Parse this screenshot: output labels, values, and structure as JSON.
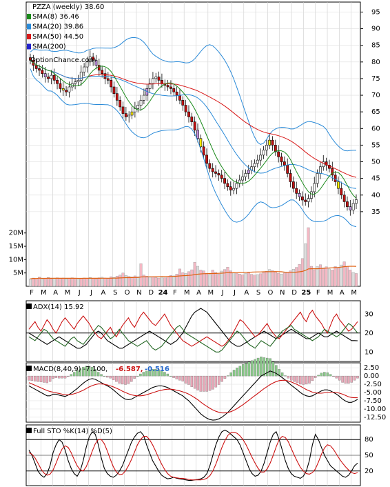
{
  "chart_data": [
    {
      "type": "candlestick",
      "panel": "price",
      "ticker_label": "PZZA (weekly) 38.60",
      "watermark": "OptionChance.com",
      "legend": [
        {
          "label": "SMA(8) 36.46",
          "color": "#1a8a1a"
        },
        {
          "label": "SMA(20) 39.86",
          "color": "#2a8ad8"
        },
        {
          "label": "SMA(50) 44.50",
          "color": "#d81818"
        },
        {
          "label": "SMA(200)",
          "color": "#2222cc"
        }
      ],
      "bollinger_color": "#ffee66",
      "x_labels": [
        "F",
        "M",
        "A",
        "M",
        "J",
        "J",
        "A",
        "S",
        "O",
        "N",
        "D",
        "24",
        "F",
        "M",
        "A",
        "M",
        "J",
        "J",
        "A",
        "S",
        "O",
        "N",
        "D",
        "25",
        "F",
        "M",
        "A",
        "M"
      ],
      "y_ticks": [
        95,
        90,
        85,
        80,
        75,
        70,
        65,
        60,
        55,
        50,
        45,
        40,
        35
      ],
      "ylim": [
        28,
        98
      ],
      "closes": [
        80.5,
        79.0,
        78.0,
        77.5,
        76.5,
        75.5,
        75.0,
        76.0,
        74.5,
        73.5,
        72.0,
        71.5,
        71.0,
        72.5,
        73.5,
        74.0,
        74.5,
        77.0,
        78.5,
        80.0,
        81.5,
        80.5,
        79.0,
        77.5,
        76.5,
        75.0,
        74.5,
        72.5,
        70.5,
        68.5,
        66.5,
        64.5,
        63.5,
        64.0,
        65.0,
        66.0,
        67.0,
        68.5,
        70.0,
        72.0,
        73.5,
        75.0,
        75.5,
        74.5,
        73.5,
        73.0,
        72.5,
        72.0,
        71.0,
        70.0,
        68.5,
        67.0,
        65.0,
        63.5,
        62.0,
        59.5,
        57.0,
        54.5,
        52.0,
        49.5,
        48.0,
        47.0,
        46.5,
        46.0,
        45.0,
        43.5,
        42.5,
        41.5,
        42.0,
        43.5,
        44.5,
        45.5,
        46.5,
        47.5,
        48.5,
        49.5,
        50.5,
        52.0,
        53.5,
        55.0,
        56.5,
        55.0,
        53.0,
        51.5,
        50.0,
        49.0,
        46.5,
        44.0,
        42.0,
        40.5,
        39.5,
        38.5,
        38.0,
        39.0,
        41.0,
        43.5,
        46.5,
        48.5,
        50.0,
        49.0,
        48.0,
        46.0,
        44.0,
        42.0,
        40.0,
        38.0,
        36.5,
        35.5,
        37.5,
        38.6
      ],
      "volume_ticks": [
        "20M",
        "15M",
        "10M",
        "5M"
      ],
      "volume_ylim": [
        0,
        22
      ],
      "volume_millions": [
        2.8,
        3.1,
        2.9,
        3.4,
        2.7,
        3.0,
        3.3,
        2.8,
        3.0,
        3.2,
        2.9,
        3.1,
        2.8,
        3.0,
        3.2,
        2.9,
        2.7,
        3.0,
        3.1,
        2.9,
        3.3,
        3.0,
        2.8,
        3.2,
        3.4,
        3.1,
        2.9,
        3.6,
        3.3,
        3.8,
        4.2,
        5.0,
        4.1,
        3.7,
        3.5,
        3.9,
        3.6,
        8.5,
        4.2,
        3.8,
        3.4,
        3.6,
        3.3,
        3.1,
        3.5,
        3.2,
        3.7,
        4.1,
        3.9,
        4.6,
        6.5,
        5.1,
        4.8,
        5.5,
        6.2,
        9.0,
        7.5,
        6.1,
        5.8,
        4.9,
        4.4,
        6.1,
        5.2,
        4.6,
        5.7,
        6.3,
        7.2,
        5.8,
        5.1,
        4.9,
        4.6,
        4.3,
        4.8,
        5.1,
        4.5,
        4.2,
        4.4,
        4.7,
        5.2,
        5.6,
        6.3,
        5.9,
        5.4,
        4.9,
        4.6,
        5.0,
        5.3,
        5.8,
        6.4,
        7.1,
        8.2,
        10.4,
        16.0,
        22.0,
        7.5,
        6.2,
        7.4,
        8.1,
        6.9,
        7.3,
        6.5,
        6.1,
        7.4,
        6.8,
        8.0,
        9.2,
        7.4,
        6.1,
        5.2,
        4.8
      ]
    },
    {
      "type": "line",
      "panel": "ADX",
      "label": "ADX(14) 15.92",
      "y_ticks": [
        30,
        20,
        10
      ],
      "ylim": [
        5,
        37
      ],
      "series": [
        {
          "name": "",
          "color": "#000000",
          "values": [
            20,
            19,
            18,
            17,
            16,
            15,
            14,
            15,
            16,
            17,
            18,
            17,
            16,
            15,
            14,
            13,
            12,
            12,
            13,
            14,
            16,
            18,
            20,
            21,
            20,
            18,
            16,
            15,
            14,
            13,
            12,
            12,
            13,
            14,
            15,
            16,
            17,
            18,
            19,
            20,
            21,
            20,
            19,
            18,
            17,
            16,
            15,
            14,
            15,
            16,
            18,
            20,
            23,
            26,
            29,
            31,
            32,
            33,
            32,
            31,
            29,
            27,
            25,
            23,
            21,
            19,
            17,
            15,
            14,
            13,
            13,
            14,
            15,
            16,
            17,
            18,
            19,
            20,
            21,
            20,
            19,
            18,
            17,
            18,
            19,
            20,
            21,
            22,
            21,
            20,
            19,
            18,
            17,
            17,
            18,
            19,
            20,
            19,
            18,
            18,
            19,
            20,
            21,
            20,
            19,
            18,
            17,
            16,
            16,
            15.9
          ]
        },
        {
          "name": "",
          "color": "#cc1111",
          "values": [
            22,
            24,
            26,
            23,
            21,
            24,
            27,
            25,
            22,
            20,
            23,
            26,
            28,
            26,
            24,
            22,
            25,
            27,
            29,
            27,
            25,
            22,
            20,
            18,
            17,
            19,
            21,
            23,
            20,
            18,
            21,
            24,
            26,
            28,
            25,
            23,
            26,
            29,
            31,
            29,
            27,
            25,
            24,
            26,
            28,
            30,
            27,
            24,
            22,
            20,
            18,
            16,
            15,
            14,
            13,
            14,
            15,
            16,
            17,
            18,
            17,
            16,
            15,
            14,
            13,
            14,
            16,
            18,
            21,
            24,
            27,
            26,
            24,
            22,
            20,
            18,
            19,
            21,
            23,
            25,
            22,
            20,
            18,
            17,
            19,
            21,
            23,
            25,
            27,
            29,
            31,
            28,
            26,
            30,
            32,
            29,
            27,
            25,
            22,
            20,
            24,
            28,
            30,
            27,
            25,
            23,
            21,
            22,
            24,
            26
          ]
        },
        {
          "name": "",
          "color": "#226622",
          "values": [
            18,
            17,
            16,
            18,
            20,
            22,
            21,
            19,
            17,
            16,
            15,
            14,
            13,
            15,
            17,
            18,
            16,
            15,
            14,
            16,
            18,
            20,
            22,
            24,
            23,
            21,
            19,
            17,
            18,
            20,
            22,
            20,
            18,
            16,
            15,
            14,
            13,
            14,
            15,
            16,
            14,
            12,
            11,
            12,
            13,
            15,
            17,
            19,
            21,
            23,
            24,
            22,
            20,
            19,
            18,
            17,
            16,
            15,
            14,
            13,
            12,
            11,
            10,
            10,
            11,
            13,
            15,
            17,
            19,
            21,
            20,
            18,
            16,
            14,
            13,
            12,
            14,
            16,
            15,
            14,
            13,
            15,
            17,
            19,
            21,
            22,
            23,
            24,
            22,
            21,
            20,
            19,
            18,
            17,
            16,
            17,
            18,
            20,
            22,
            21,
            20,
            19,
            18,
            19,
            21,
            23,
            25,
            24,
            22,
            20
          ]
        }
      ]
    },
    {
      "type": "line",
      "panel": "MACD",
      "label": "MACD(8,40,9) -7.100,",
      "signal_value": "-6.587,",
      "hist_value": "-0.516",
      "y_ticks": [
        "2.50",
        "0.00",
        "-2.50",
        "-5.00",
        "-7.50",
        "-10.00",
        "-12.50"
      ],
      "ylim": [
        -14,
        4
      ],
      "series": [
        {
          "name": "",
          "color": "#000000",
          "values": [
            -3,
            -3.5,
            -4,
            -4.5,
            -5,
            -5.5,
            -6,
            -6,
            -5.5,
            -5.5,
            -5.8,
            -6,
            -6.2,
            -5.8,
            -5.2,
            -4.5,
            -3.8,
            -3,
            -2.2,
            -1.5,
            -1,
            -0.8,
            -1,
            -1.5,
            -2,
            -2.5,
            -3,
            -3.5,
            -4.2,
            -5,
            -5.8,
            -6.5,
            -7,
            -7.2,
            -7,
            -6.5,
            -6,
            -5.5,
            -5,
            -4.5,
            -4,
            -3.5,
            -3.2,
            -3,
            -3,
            -3.2,
            -3.5,
            -4,
            -4.5,
            -5,
            -5.5,
            -6,
            -6.8,
            -7.5,
            -8.5,
            -9.5,
            -10.5,
            -11.5,
            -12.2,
            -12.8,
            -13.2,
            -13.4,
            -13.3,
            -13,
            -12.5,
            -11.8,
            -11,
            -10,
            -9,
            -8,
            -7,
            -6,
            -5,
            -4,
            -3,
            -2,
            -1,
            0,
            0.5,
            1,
            1.5,
            1.2,
            0.8,
            0.2,
            -0.5,
            -1.2,
            -2,
            -2.8,
            -3.5,
            -4.2,
            -5,
            -5.6,
            -6,
            -6.2,
            -6,
            -5.5,
            -5,
            -4.5,
            -4.2,
            -4.2,
            -4.5,
            -5,
            -5.5,
            -6.2,
            -7,
            -7.6,
            -8,
            -8,
            -7.6,
            -7.1
          ]
        },
        {
          "name": "",
          "color": "#cc1111",
          "values": [
            -2,
            -2.4,
            -2.8,
            -3.2,
            -3.6,
            -4,
            -4.4,
            -4.7,
            -4.9,
            -5.1,
            -5.3,
            -5.5,
            -5.7,
            -5.7,
            -5.6,
            -5.4,
            -5.1,
            -4.7,
            -4.3,
            -3.8,
            -3.3,
            -2.9,
            -2.6,
            -2.4,
            -2.4,
            -2.5,
            -2.7,
            -3,
            -3.3,
            -3.7,
            -4.1,
            -4.6,
            -5,
            -5.4,
            -5.7,
            -5.9,
            -6,
            -6,
            -5.9,
            -5.7,
            -5.4,
            -5.1,
            -4.8,
            -4.5,
            -4.3,
            -4.1,
            -4,
            -4,
            -4.1,
            -4.3,
            -4.5,
            -4.8,
            -5.1,
            -5.5,
            -6,
            -6.6,
            -7.2,
            -7.9,
            -8.6,
            -9.2,
            -9.8,
            -10.3,
            -10.7,
            -11,
            -11.2,
            -11.2,
            -11.1,
            -10.8,
            -10.4,
            -9.9,
            -9.3,
            -8.7,
            -8,
            -7.3,
            -6.6,
            -5.9,
            -5.2,
            -4.5,
            -3.8,
            -3.2,
            -2.6,
            -2.1,
            -1.7,
            -1.4,
            -1.3,
            -1.3,
            -1.5,
            -1.8,
            -2.2,
            -2.6,
            -3.1,
            -3.6,
            -4.1,
            -4.5,
            -4.9,
            -5.1,
            -5.2,
            -5.2,
            -5.1,
            -5,
            -4.9,
            -4.9,
            -5,
            -5.2,
            -5.5,
            -5.9,
            -6.3,
            -6.5,
            -6.6,
            -6.59
          ]
        }
      ]
    },
    {
      "type": "line",
      "panel": "Stochastic",
      "label": "Full STO %K(14) %D(5)",
      "y_ticks": [
        80,
        50,
        20
      ],
      "ylim": [
        0,
        100
      ],
      "series": [
        {
          "name": "",
          "color": "#000000",
          "values": [
            60,
            50,
            35,
            20,
            12,
            8,
            15,
            30,
            55,
            70,
            80,
            75,
            60,
            40,
            25,
            15,
            10,
            20,
            40,
            65,
            85,
            95,
            90,
            70,
            45,
            25,
            15,
            10,
            8,
            12,
            20,
            30,
            45,
            60,
            75,
            85,
            92,
            95,
            88,
            70,
            55,
            40,
            30,
            20,
            12,
            8,
            5,
            6,
            8,
            6,
            5,
            4,
            3,
            2,
            2,
            3,
            4,
            5,
            8,
            15,
            30,
            50,
            70,
            85,
            95,
            98,
            95,
            90,
            85,
            80,
            70,
            55,
            40,
            25,
            15,
            10,
            12,
            20,
            35,
            55,
            75,
            90,
            95,
            80,
            60,
            40,
            25,
            15,
            10,
            8,
            6,
            10,
            20,
            40,
            70,
            90,
            80,
            65,
            50,
            40,
            30,
            25,
            20,
            15,
            10,
            8,
            12,
            20,
            30,
            35
          ]
        },
        {
          "name": "",
          "color": "#cc1111",
          "values": [
            55,
            52,
            45,
            35,
            24,
            16,
            12,
            14,
            22,
            35,
            50,
            62,
            68,
            65,
            55,
            42,
            30,
            22,
            20,
            28,
            42,
            58,
            72,
            80,
            80,
            72,
            58,
            42,
            28,
            18,
            13,
            14,
            20,
            30,
            42,
            56,
            70,
            80,
            86,
            86,
            80,
            70,
            58,
            45,
            33,
            23,
            15,
            10,
            8,
            7,
            6,
            6,
            5,
            4,
            3,
            3,
            3,
            3,
            4,
            6,
            11,
            20,
            33,
            49,
            65,
            78,
            88,
            93,
            94,
            92,
            87,
            80,
            70,
            58,
            46,
            35,
            25,
            18,
            18,
            24,
            35,
            50,
            66,
            80,
            86,
            84,
            76,
            63,
            50,
            38,
            27,
            20,
            15,
            14,
            17,
            24,
            37,
            52,
            64,
            70,
            68,
            61,
            52,
            43,
            35,
            28,
            22,
            17,
            15,
            17
          ]
        }
      ]
    }
  ]
}
